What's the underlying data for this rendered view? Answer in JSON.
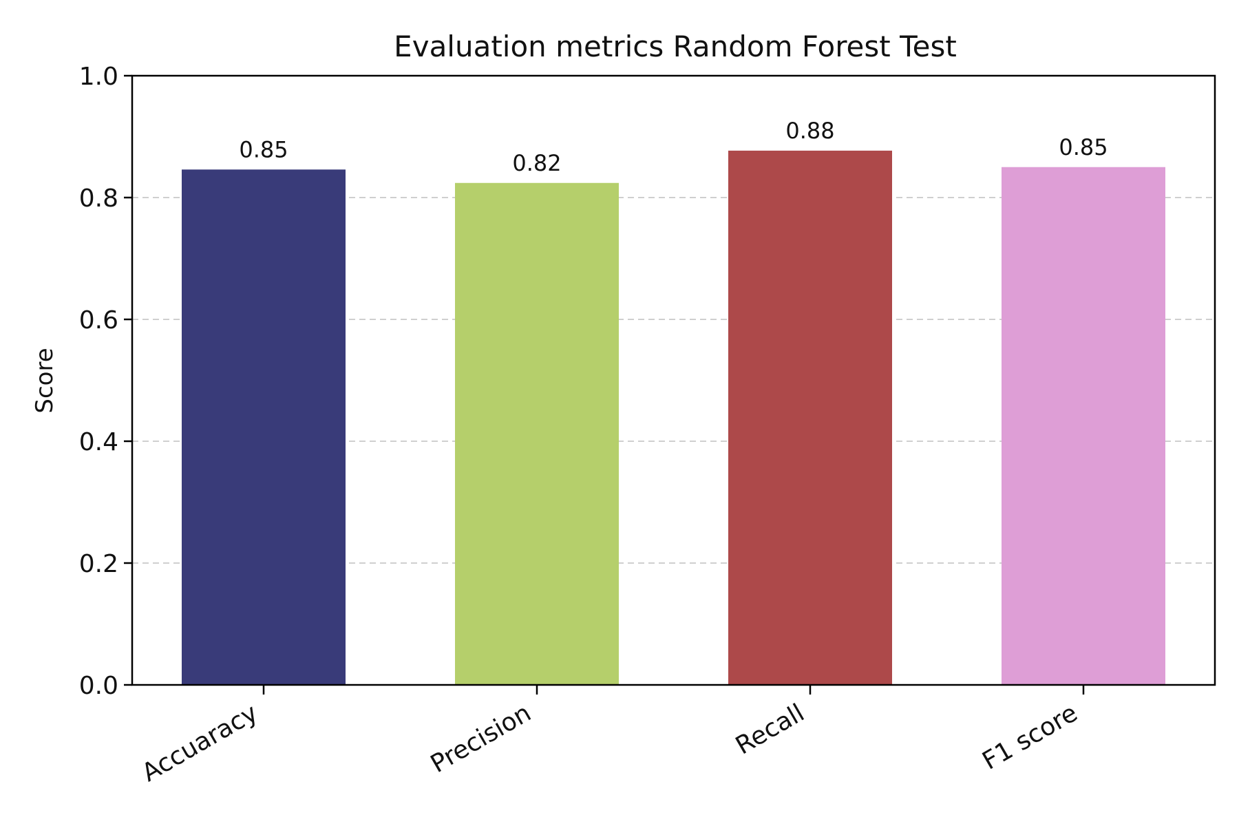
{
  "chart_data": {
    "type": "bar",
    "title": "Evaluation metrics Random Forest Test",
    "xlabel": "",
    "ylabel": "Score",
    "ylim": [
      0,
      1.0
    ],
    "yticks": [
      0.0,
      0.2,
      0.4,
      0.6,
      0.8,
      1.0
    ],
    "ytick_labels": [
      "0.0",
      "0.2",
      "0.4",
      "0.6",
      "0.8",
      "1.0"
    ],
    "grid": "horizontal dashed",
    "categories": [
      "Accuaracy",
      "Precision",
      "Recall",
      "F1 score"
    ],
    "values": [
      0.846,
      0.824,
      0.877,
      0.85
    ],
    "value_labels": [
      "0.85",
      "0.82",
      "0.88",
      "0.85"
    ],
    "colors": [
      "#393b79",
      "#b5cf6b",
      "#ad494a",
      "#de9ed6"
    ]
  }
}
